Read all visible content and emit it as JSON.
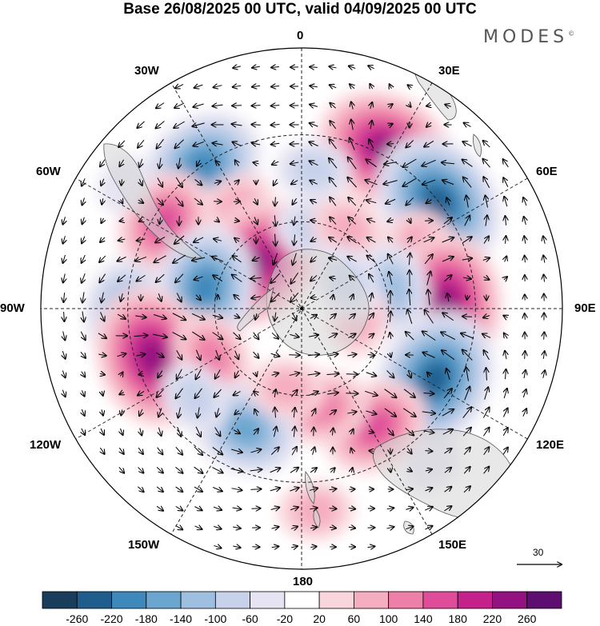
{
  "title": "Base 26/08/2025 00 UTC, valid 04/09/2025 00 UTC",
  "brand": "MODES",
  "brand_mark": "©",
  "longitude_labels": {
    "lon_0": "0",
    "lon_30e": "30E",
    "lon_60e": "60E",
    "lon_90e": "90E",
    "lon_120e": "120E",
    "lon_150e": "150E",
    "lon_180": "180",
    "lon_150w": "150W",
    "lon_120w": "120W",
    "lon_90w": "90W",
    "lon_60w": "60W",
    "lon_30w": "30W"
  },
  "reference_vector": "30",
  "colorbar": {
    "ticks": [
      "-260",
      "-220",
      "-180",
      "-140",
      "-100",
      "-60",
      "-20",
      "20",
      "60",
      "100",
      "140",
      "180",
      "220",
      "260"
    ],
    "colors": [
      "#1b3d5c",
      "#1f5d8c",
      "#3e88bb",
      "#6aa6cf",
      "#9fbfe0",
      "#c7d2ea",
      "#e6e4f2",
      "#ffffff",
      "#f9d6dc",
      "#f5aebf",
      "#ee7fa8",
      "#df4d9a",
      "#c4218b",
      "#931281",
      "#5e0d70"
    ]
  },
  "anomalies": [
    {
      "lon": -35,
      "lat": -30,
      "value": -200
    },
    {
      "lon": 28,
      "lat": -28,
      "value": 230
    },
    {
      "lon": 52,
      "lat": -30,
      "value": -220
    },
    {
      "lon": -58,
      "lat": -34,
      "value": 160
    },
    {
      "lon": -32,
      "lat": -48,
      "value": 80
    },
    {
      "lon": 5,
      "lat": -42,
      "value": -60
    },
    {
      "lon": -45,
      "lat": -68,
      "value": 240
    },
    {
      "lon": 8,
      "lat": -62,
      "value": -90
    },
    {
      "lon": 30,
      "lat": -58,
      "value": 90
    },
    {
      "lon": 66,
      "lat": -44,
      "value": 100
    },
    {
      "lon": 88,
      "lat": -40,
      "value": 250
    },
    {
      "lon": 78,
      "lat": -58,
      "value": -110
    },
    {
      "lon": -78,
      "lat": -56,
      "value": -180
    },
    {
      "lon": -92,
      "lat": -30,
      "value": -150
    },
    {
      "lon": -108,
      "lat": -36,
      "value": 230
    },
    {
      "lon": -118,
      "lat": -55,
      "value": 130
    },
    {
      "lon": 118,
      "lat": -38,
      "value": -250
    },
    {
      "lon": 148,
      "lat": -42,
      "value": 170
    },
    {
      "lon": 168,
      "lat": -55,
      "value": 110
    },
    {
      "lon": -155,
      "lat": -44,
      "value": -160
    },
    {
      "lon": -170,
      "lat": -62,
      "value": 80
    },
    {
      "lon": -130,
      "lat": -42,
      "value": -60
    },
    {
      "lon": 176,
      "lat": -20,
      "value": 60
    },
    {
      "lon": 140,
      "lat": -20,
      "value": -40
    },
    {
      "lon": -55,
      "lat": -15,
      "value": -40
    },
    {
      "lon": 100,
      "lat": -70,
      "value": 60
    },
    {
      "lon": 60,
      "lat": -72,
      "value": -60
    }
  ]
}
